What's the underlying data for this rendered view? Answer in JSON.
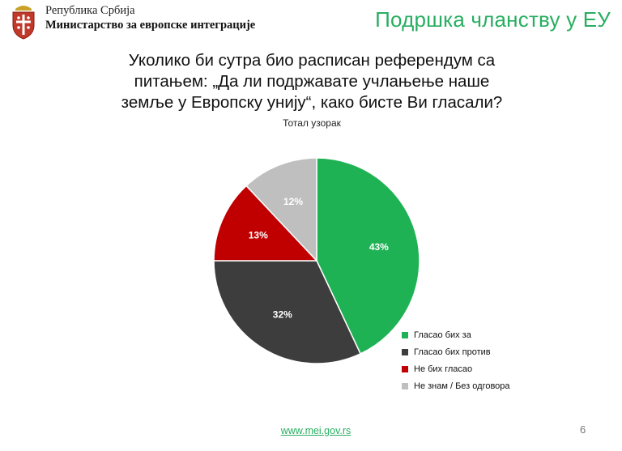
{
  "header": {
    "org_line1": "Република Србија",
    "org_line2": "Министарство за европске интеграције",
    "page_title": "Подршка чланству у ЕУ"
  },
  "chart_data": {
    "type": "pie",
    "title": "Уколико би сутра био расписан референдум са питањем: „Да ли подржавате учлањење наше земље у Европску унију“, како бисте Ви гласали?",
    "subtitle": "Тотал узорак",
    "categories": [
      "Гласао бих за",
      "Гласао бих против",
      "Не бих гласао",
      "Не знам / Без одговора"
    ],
    "values": [
      43,
      32,
      13,
      12
    ],
    "value_labels": [
      "43%",
      "32%",
      "13%",
      "12%"
    ],
    "colors": [
      "#1fb254",
      "#3d3d3d",
      "#c00000",
      "#bfbfbf"
    ],
    "label_colors": [
      "#ffffff",
      "#ffffff",
      "#ffffff",
      "#ffffff"
    ],
    "legend_position": "right",
    "start_angle": "12 o'clock, clockwise"
  },
  "footer": {
    "link": "www.mei.gov.rs",
    "page_number": "6"
  }
}
